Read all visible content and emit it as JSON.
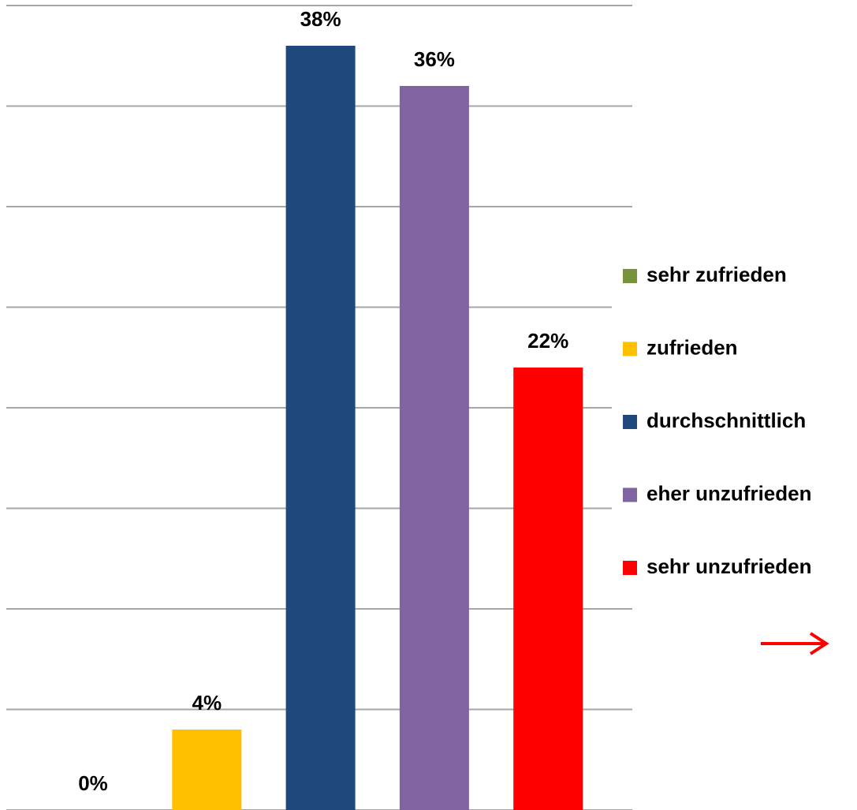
{
  "chart_data": {
    "type": "bar",
    "series": [
      {
        "name": "sehr zufrieden",
        "color": "#77933c",
        "values": [
          0
        ],
        "value_labels": [
          "0%"
        ]
      },
      {
        "name": "zufrieden",
        "color": "#ffc000",
        "values": [
          4
        ],
        "value_labels": [
          "4%"
        ]
      },
      {
        "name": "durchschnittlich",
        "color": "#1f497d",
        "values": [
          38
        ],
        "value_labels": [
          "38%"
        ]
      },
      {
        "name": "eher unzufrieden",
        "color": "#8064a2",
        "values": [
          36
        ],
        "value_labels": [
          "36%"
        ]
      },
      {
        "name": "sehr unzufrieden",
        "color": "#ff0000",
        "values": [
          22
        ],
        "value_labels": [
          "22%"
        ]
      }
    ],
    "ylim": [
      0,
      40
    ],
    "yticks": [
      0,
      5,
      10,
      15,
      20,
      25,
      30,
      35,
      40
    ],
    "grid": true
  }
}
